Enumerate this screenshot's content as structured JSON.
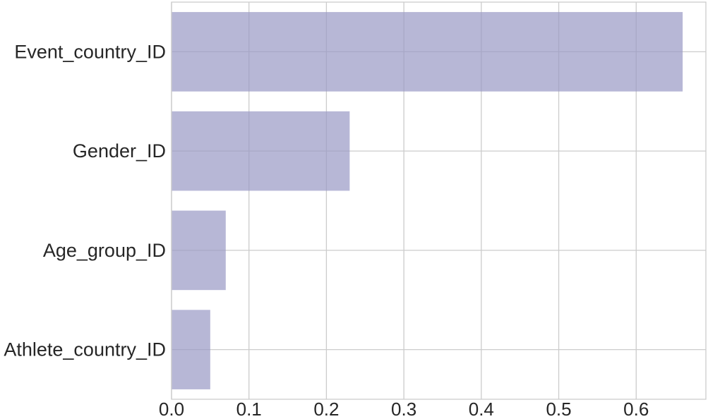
{
  "chart_data": {
    "type": "bar",
    "orientation": "horizontal",
    "title": "",
    "xlabel": "",
    "ylabel": "",
    "categories": [
      "Event_country_ID",
      "Gender_ID",
      "Age_group_ID",
      "Athlete_country_ID"
    ],
    "values": [
      0.66,
      0.23,
      0.07,
      0.05
    ],
    "xlim": [
      0,
      0.69
    ],
    "xticks": [
      0.0,
      0.1,
      0.2,
      0.3,
      0.4,
      0.5,
      0.6
    ],
    "xtick_labels": [
      "0.0",
      "0.1",
      "0.2",
      "0.3",
      "0.4",
      "0.5",
      "0.6"
    ],
    "grid": true,
    "bar_color": "#9999c5",
    "bar_opacity": 0.7,
    "grid_color": "#cccccc"
  }
}
